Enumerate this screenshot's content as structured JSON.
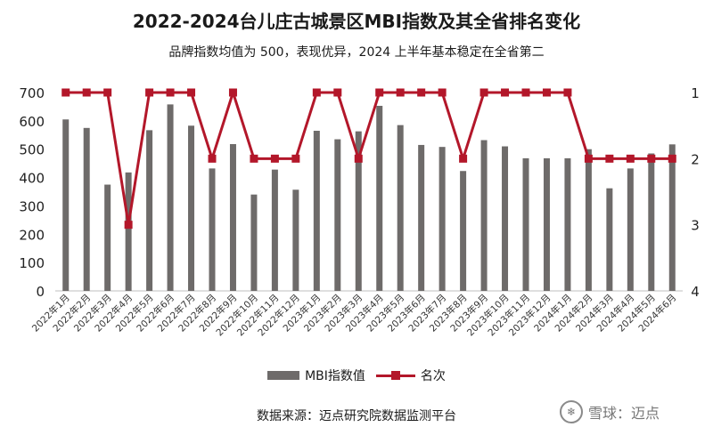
{
  "title": "2022-2024台儿庄古城景区MBI指数及其全省排名变化",
  "subtitle": "品牌指数均值为 500，表现优异，2024 上半年基本稳定在全省第二",
  "source": "数据来源：迈点研究院数据监测平台",
  "watermark": {
    "text": "雪球：迈点",
    "icon": "snowball-icon"
  },
  "colors": {
    "bar": "#6e6b6a",
    "line": "#b3172a"
  },
  "chart_data": {
    "type": "bar",
    "categories": [
      "2022年1月",
      "2022年2月",
      "2022年3月",
      "2022年4月",
      "2022年5月",
      "2022年6月",
      "2022年7月",
      "2022年8月",
      "2022年9月",
      "2022年10月",
      "2022年11月",
      "2022年12月",
      "2023年1月",
      "2023年2月",
      "2023年3月",
      "2023年4月",
      "2023年5月",
      "2023年6月",
      "2023年7月",
      "2023年8月",
      "2023年9月",
      "2023年10月",
      "2023年11月",
      "2023年12月",
      "2024年1月",
      "2024年2月",
      "2024年3月",
      "2024年4月",
      "2024年5月",
      "2024年6月"
    ],
    "series": [
      {
        "name": "MBI指数值",
        "type": "bar",
        "axis": "left",
        "values": [
          605,
          575,
          375,
          418,
          567,
          658,
          583,
          432,
          518,
          340,
          428,
          357,
          565,
          535,
          563,
          653,
          585,
          515,
          508,
          423,
          532,
          510,
          468,
          468,
          468,
          500,
          362,
          432,
          485,
          517
        ]
      },
      {
        "name": "名次",
        "type": "line",
        "axis": "right",
        "values": [
          1,
          1,
          1,
          3,
          1,
          1,
          1,
          2,
          1,
          2,
          2,
          2,
          1,
          1,
          2,
          1,
          1,
          1,
          1,
          2,
          1,
          1,
          1,
          1,
          1,
          2,
          2,
          2,
          2,
          2
        ]
      }
    ],
    "y_left": {
      "min": 0,
      "max": 700,
      "ticks": [
        0,
        100,
        200,
        300,
        400,
        500,
        600,
        700
      ]
    },
    "y_right": {
      "min": 1,
      "max": 4,
      "inverted": true,
      "ticks": [
        1,
        2,
        3,
        4
      ]
    },
    "legend": "bottom-center",
    "grid": false
  },
  "legend": {
    "bar_label": "MBI指数值",
    "line_label": "名次"
  }
}
